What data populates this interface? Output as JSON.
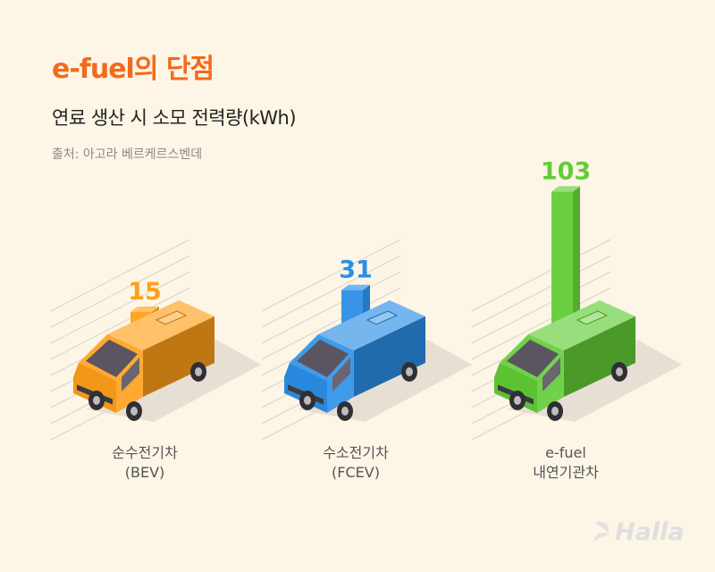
{
  "header": {
    "title": "e-fuel의 단점",
    "subtitle": "연료 생산 시 소모 전력량(kWh)",
    "source": "출처: 아고라 베르케르스벤데"
  },
  "chart_data": {
    "type": "bar",
    "title": "e-fuel의 단점",
    "subtitle": "연료 생산 시 소모 전력량(kWh)",
    "ylabel": "",
    "xlabel": "",
    "categories": [
      "순수전기차 (BEV)",
      "수소전기차 (FCEV)",
      "e-fuel 내연기관차"
    ],
    "series": [
      {
        "values": [
          15,
          31,
          103
        ]
      }
    ],
    "value_labels": [
      "15",
      "31",
      "103"
    ],
    "category_lines": [
      [
        "순수전기차",
        "(BEV)"
      ],
      [
        "수소전기차",
        "(FCEV)"
      ],
      [
        "e-fuel",
        "내연기관차"
      ]
    ],
    "colors": [
      "#ff9f1a",
      "#2b8fe6",
      "#62cc36"
    ],
    "grid": false,
    "legend": "none"
  },
  "logo": {
    "text": "Halla"
  }
}
